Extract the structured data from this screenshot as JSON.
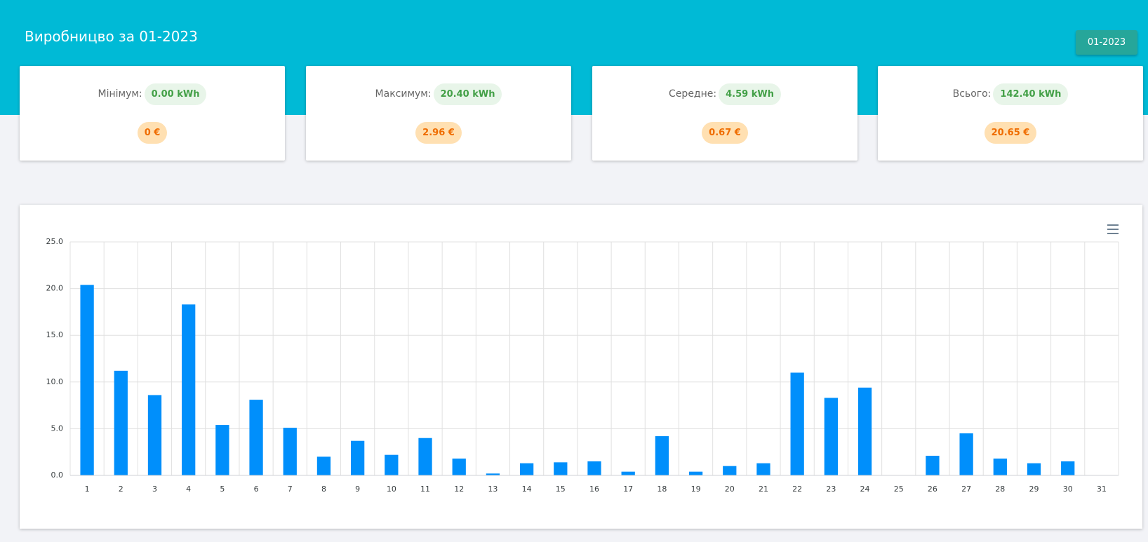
{
  "header": {
    "title": "Виробницво за 01-2023",
    "button": "01-2023"
  },
  "stats": [
    {
      "label": "Мінімум:",
      "energy": "0.00 kWh",
      "cost": "0 €"
    },
    {
      "label": "Максимум:",
      "energy": "20.40 kWh",
      "cost": "2.96 €"
    },
    {
      "label": "Середне:",
      "energy": "4.59 kWh",
      "cost": "0.67 €"
    },
    {
      "label": "Всього:",
      "energy": "142.40 kWh",
      "cost": "20.65 €"
    }
  ],
  "chart_data": {
    "type": "bar",
    "color": "#008ffb",
    "grid": true,
    "categories": [
      "1",
      "2",
      "3",
      "4",
      "5",
      "6",
      "7",
      "8",
      "9",
      "10",
      "11",
      "12",
      "13",
      "14",
      "15",
      "16",
      "17",
      "18",
      "19",
      "20",
      "21",
      "22",
      "23",
      "24",
      "25",
      "26",
      "27",
      "28",
      "29",
      "30",
      "31"
    ],
    "values": [
      20.4,
      11.2,
      8.6,
      18.3,
      5.4,
      8.1,
      5.1,
      2.0,
      3.7,
      2.2,
      4.0,
      1.8,
      0.2,
      1.3,
      1.4,
      1.5,
      0.4,
      4.2,
      0.4,
      1.0,
      1.3,
      11.0,
      8.3,
      9.4,
      0,
      2.1,
      4.5,
      1.8,
      1.3,
      1.5,
      0
    ],
    "ylim": [
      0,
      25
    ],
    "yticks": [
      {
        "value": 0,
        "label": "0.0"
      },
      {
        "value": 5,
        "label": "5.0"
      },
      {
        "value": 10,
        "label": "10.0"
      },
      {
        "value": 15,
        "label": "15.0"
      },
      {
        "value": 20,
        "label": "20.0"
      },
      {
        "value": 25,
        "label": "25.0"
      }
    ]
  }
}
